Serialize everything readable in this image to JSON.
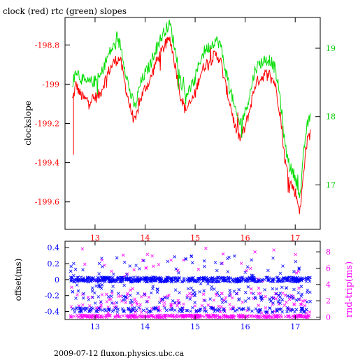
{
  "title": "clock (red) rtc (green) slopes",
  "footer": "2009-07-12 fluxon.physics.ubc.ca",
  "colors": {
    "clock": "#ff0000",
    "rtc": "#00dd00",
    "offset": "#0000ff",
    "rndtrip": "#ff00ff",
    "axis": "#000000"
  },
  "chart_data": [
    {
      "type": "line",
      "title": "clock (red) rtc (green) slopes",
      "xlabel": "",
      "ylabel": "clockslope",
      "xlim": [
        12.4,
        17.5
      ],
      "ylim": [
        -199.74,
        -198.66
      ],
      "y2lim": [
        16.35,
        19.45
      ],
      "x_ticks": [
        13,
        14,
        15,
        16,
        17
      ],
      "y_ticks": [
        -198.8,
        -199,
        -199.2,
        -199.4,
        -199.6
      ],
      "y_tick_labels": [
        "-198.8",
        "-199",
        "-199.2",
        "-199.4",
        "-199.6"
      ],
      "y2_ticks": [
        17,
        18,
        19
      ],
      "series": [
        {
          "name": "clock",
          "axis": "left",
          "x": [
            12.55,
            12.62,
            12.7,
            12.8,
            12.9,
            13.0,
            13.1,
            13.2,
            13.3,
            13.4,
            13.5,
            13.6,
            13.7,
            13.8,
            13.9,
            14.0,
            14.1,
            14.2,
            14.3,
            14.4,
            14.5,
            14.6,
            14.7,
            14.8,
            14.9,
            15.0,
            15.1,
            15.2,
            15.3,
            15.4,
            15.5,
            15.6,
            15.7,
            15.8,
            15.9,
            16.0,
            16.1,
            16.2,
            16.3,
            16.4,
            16.5,
            16.6,
            16.7,
            16.8,
            16.9,
            17.0,
            17.05,
            17.1,
            17.15,
            17.2,
            17.25,
            17.3
          ],
          "y": [
            -199.08,
            -199.0,
            -199.05,
            -199.08,
            -199.08,
            -199.07,
            -199.05,
            -198.98,
            -198.92,
            -198.88,
            -198.87,
            -199.0,
            -199.12,
            -199.2,
            -199.08,
            -199.02,
            -198.98,
            -198.9,
            -198.85,
            -198.8,
            -198.77,
            -198.9,
            -199.05,
            -199.13,
            -199.1,
            -199.05,
            -198.95,
            -198.9,
            -198.88,
            -198.85,
            -198.87,
            -199.0,
            -199.1,
            -199.22,
            -199.28,
            -199.22,
            -199.12,
            -199.0,
            -198.97,
            -198.95,
            -198.95,
            -199.0,
            -199.15,
            -199.4,
            -199.5,
            -199.55,
            -199.6,
            -199.65,
            -199.5,
            -199.35,
            -199.28,
            -199.25
          ]
        },
        {
          "name": "rtc",
          "axis": "right",
          "x": [
            12.55,
            12.62,
            12.7,
            12.8,
            12.9,
            13.0,
            13.1,
            13.2,
            13.3,
            13.4,
            13.5,
            13.6,
            13.7,
            13.8,
            13.9,
            14.0,
            14.1,
            14.2,
            14.3,
            14.4,
            14.5,
            14.6,
            14.7,
            14.8,
            14.9,
            15.0,
            15.1,
            15.2,
            15.3,
            15.4,
            15.5,
            15.6,
            15.7,
            15.8,
            15.9,
            16.0,
            16.1,
            16.2,
            16.3,
            16.4,
            16.5,
            16.6,
            16.7,
            16.8,
            16.9,
            17.0,
            17.05,
            17.1,
            17.15,
            17.2,
            17.25,
            17.3
          ],
          "y": [
            18.45,
            18.7,
            18.58,
            18.5,
            18.5,
            18.52,
            18.58,
            18.78,
            18.95,
            19.05,
            19.08,
            18.7,
            18.35,
            18.12,
            18.47,
            18.63,
            18.75,
            18.98,
            19.12,
            19.27,
            19.35,
            18.98,
            18.55,
            18.33,
            18.4,
            18.55,
            18.83,
            18.98,
            19.03,
            19.12,
            19.07,
            18.7,
            18.42,
            18.07,
            17.9,
            18.07,
            18.35,
            18.7,
            18.78,
            18.83,
            18.83,
            18.7,
            18.27,
            17.55,
            17.25,
            17.12,
            16.98,
            16.83,
            17.27,
            17.7,
            17.9,
            17.98
          ]
        }
      ]
    },
    {
      "type": "scatter",
      "xlabel": "",
      "ylabel": "offset(ms)",
      "y2label": "rnd-trip(ms)",
      "xlim": [
        12.4,
        17.5
      ],
      "ylim": [
        -0.5,
        0.48
      ],
      "y2lim": [
        -0.3,
        9.3
      ],
      "x_ticks": [
        13,
        14,
        15,
        16,
        17
      ],
      "y_ticks": [
        0.4,
        0.2,
        0,
        -0.2,
        -0.4
      ],
      "y_tick_labels": [
        "0.4",
        "0.2",
        "0",
        "-0.2",
        "-0.4"
      ],
      "y2_ticks": [
        0,
        2,
        4,
        6,
        8
      ],
      "series": [
        {
          "name": "offset",
          "axis": "left",
          "marker": "x",
          "main_level": 0.0,
          "range": [
            -0.45,
            0.3
          ]
        },
        {
          "name": "rnd-trip",
          "axis": "right",
          "marker": "x",
          "main_level": 0.1,
          "range": [
            0,
            8.5
          ]
        }
      ]
    }
  ]
}
